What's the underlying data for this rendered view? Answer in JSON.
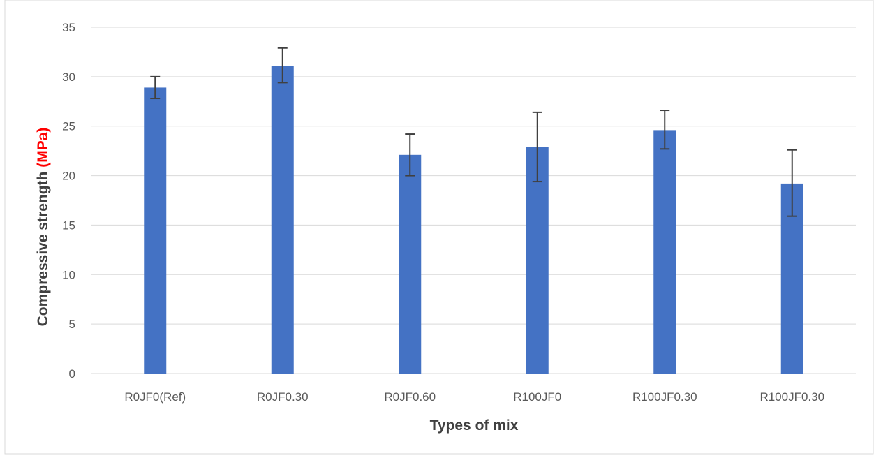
{
  "chart_data": {
    "type": "bar",
    "title": "",
    "categories": [
      "R0JF0(Ref)",
      "R0JF0.30",
      "R0JF0.60",
      "R100JF0",
      "R100JF0.30",
      "R100JF0.30"
    ],
    "values": [
      28.9,
      31.1,
      22.1,
      22.9,
      24.6,
      19.2
    ],
    "error_low": [
      27.8,
      29.4,
      20.0,
      19.4,
      22.7,
      15.9
    ],
    "error_high": [
      30.0,
      32.9,
      24.2,
      26.4,
      26.6,
      22.6
    ],
    "xlabel": "Types of mix",
    "ylabel_main": "Compressive strength ",
    "ylabel_unit": "(MPa)",
    "ylim": [
      0,
      35
    ],
    "yticks": [
      0,
      5,
      10,
      15,
      20,
      25,
      30,
      35
    ],
    "grid": true,
    "legend": "none",
    "colors": {
      "bar": "#4472c4",
      "error_bar": "#404040",
      "grid": "#d9d9d9",
      "unit_text": "#ff0000",
      "axis_text": "#595959",
      "label_text": "#404040"
    }
  }
}
